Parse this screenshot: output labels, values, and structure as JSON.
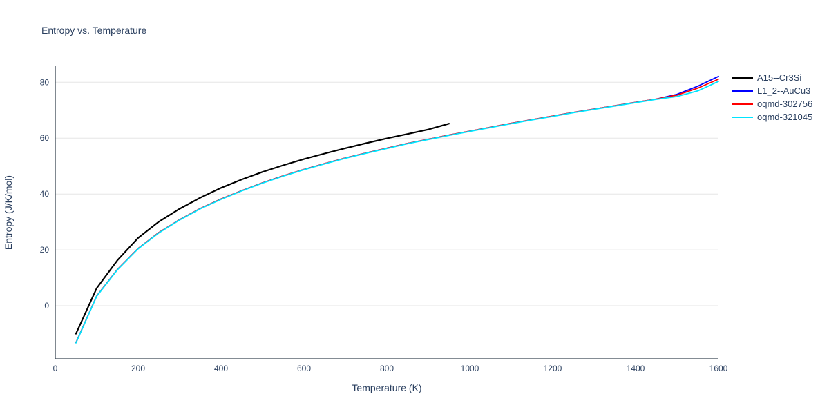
{
  "title": "Entropy vs. Temperature",
  "axes": {
    "x": {
      "label": "Temperature (K)",
      "ticks": [
        0,
        200,
        400,
        600,
        800,
        1000,
        1200,
        1400,
        1600
      ]
    },
    "y": {
      "label": "Entropy (J/K/mol)",
      "ticks": [
        0,
        20,
        40,
        60,
        80
      ]
    }
  },
  "style": {
    "grid_color": "#e6e6e6",
    "zero_line_color": "#dcdcdc",
    "spine_color": "#3b4754",
    "text_color": "#2a3f5f"
  },
  "legend": {
    "items": [
      {
        "label": "A15--Cr3Si",
        "color": "#000000"
      },
      {
        "label": "L1_2--AuCu3",
        "color": "#0000ff",
        "swatch_width": 2
      },
      {
        "label": "oqmd-302756",
        "color": "#ff0000",
        "swatch_width": 2
      },
      {
        "label": "oqmd-321045",
        "color": "#00e5ff",
        "swatch_width": 2
      }
    ]
  },
  "chart_data": {
    "type": "line",
    "title": "Entropy vs. Temperature",
    "xlabel": "Temperature (K)",
    "ylabel": "Entropy (J/K/mol)",
    "xlim": [
      0,
      1600
    ],
    "ylim": [
      -19,
      86
    ],
    "grid": "horizontal",
    "legend_position": "top-right-outside",
    "series": [
      {
        "name": "A15--Cr3Si",
        "color": "#000000",
        "width": 2.2,
        "x": [
          50,
          100,
          150,
          200,
          250,
          300,
          350,
          400,
          450,
          500,
          550,
          600,
          650,
          700,
          750,
          800,
          850,
          900,
          950
        ],
        "y": [
          -10.0,
          6.3,
          16.3,
          24.3,
          30.1,
          34.7,
          38.7,
          42.2,
          45.2,
          47.9,
          50.3,
          52.5,
          54.5,
          56.4,
          58.2,
          59.9,
          61.5,
          63.1,
          65.2
        ]
      },
      {
        "name": "L1_2--AuCu3",
        "color": "#0000ff",
        "width": 1.8,
        "x": [
          50,
          100,
          150,
          200,
          250,
          300,
          350,
          400,
          450,
          500,
          550,
          600,
          650,
          700,
          750,
          800,
          850,
          900,
          950,
          1000,
          1050,
          1100,
          1150,
          1200,
          1250,
          1300,
          1350,
          1400,
          1450,
          1500,
          1550,
          1600
        ],
        "y": [
          -13.2,
          3.5,
          13.0,
          20.5,
          26.2,
          30.8,
          34.8,
          38.2,
          41.2,
          44.0,
          46.5,
          48.8,
          50.9,
          52.9,
          54.7,
          56.4,
          58.1,
          59.6,
          61.1,
          62.5,
          63.9,
          65.3,
          66.6,
          67.9,
          69.2,
          70.4,
          71.6,
          72.8,
          74.0,
          75.7,
          78.6,
          82.1
        ]
      },
      {
        "name": "oqmd-302756",
        "color": "#ff0000",
        "width": 1.8,
        "x": [
          50,
          100,
          150,
          200,
          250,
          300,
          350,
          400,
          450,
          500,
          550,
          600,
          650,
          700,
          750,
          800,
          850,
          900,
          950,
          1000,
          1050,
          1100,
          1150,
          1200,
          1250,
          1300,
          1350,
          1400,
          1450,
          1500,
          1550,
          1600
        ],
        "y": [
          -13.2,
          3.5,
          13.0,
          20.5,
          26.2,
          30.8,
          34.8,
          38.2,
          41.2,
          44.0,
          46.5,
          48.8,
          50.9,
          52.9,
          54.7,
          56.4,
          58.1,
          59.6,
          61.1,
          62.5,
          63.9,
          65.3,
          66.6,
          67.9,
          69.2,
          70.4,
          71.6,
          72.8,
          74.0,
          75.4,
          77.9,
          81.1
        ]
      },
      {
        "name": "oqmd-321045",
        "color": "#00e5ff",
        "width": 1.8,
        "x": [
          50,
          100,
          150,
          200,
          250,
          300,
          350,
          400,
          450,
          500,
          550,
          600,
          650,
          700,
          750,
          800,
          850,
          900,
          950,
          1000,
          1050,
          1100,
          1150,
          1200,
          1250,
          1300,
          1350,
          1400,
          1450,
          1500,
          1550,
          1600
        ],
        "y": [
          -13.3,
          3.4,
          12.9,
          20.4,
          26.1,
          30.7,
          34.7,
          38.1,
          41.1,
          43.9,
          46.4,
          48.7,
          50.8,
          52.8,
          54.6,
          56.3,
          58.0,
          59.5,
          61.0,
          62.4,
          63.8,
          65.2,
          66.5,
          67.8,
          69.1,
          70.3,
          71.5,
          72.7,
          73.9,
          74.9,
          76.9,
          80.3
        ]
      }
    ]
  }
}
